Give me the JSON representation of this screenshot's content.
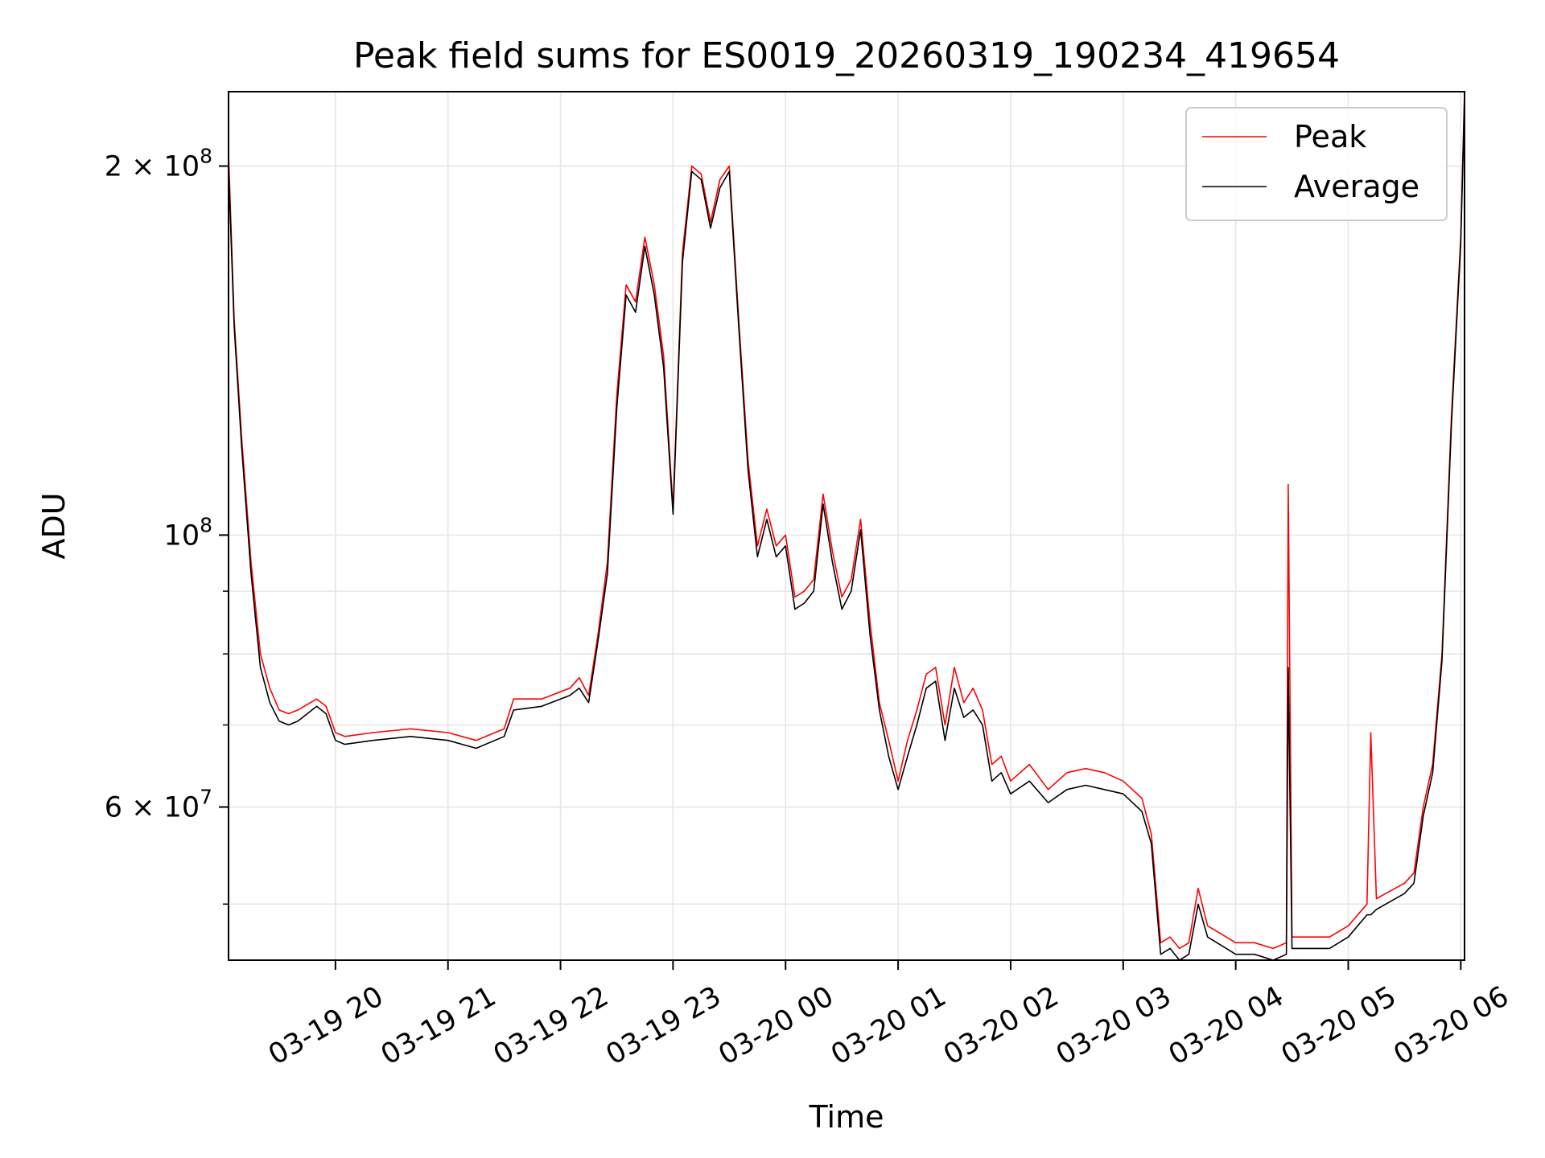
{
  "chart_data": {
    "type": "line",
    "title": "Peak field sums for ES0019_20260319_190234_419654",
    "xlabel": "Time",
    "ylabel": "ADU",
    "y_scale": "log",
    "grid": true,
    "legend_position": "top-right",
    "x_start": "2026-03-19 19:03",
    "x_end": "2026-03-20 06:02",
    "xlim": [
      "2026-03-19 19:03",
      "2026-03-20 06:02"
    ],
    "ylim": [
      45000000,
      230000000
    ],
    "x_ticks": [
      {
        "value": "2026-03-19 20:00",
        "label": "03-19 20"
      },
      {
        "value": "2026-03-19 21:00",
        "label": "03-19 21"
      },
      {
        "value": "2026-03-19 22:00",
        "label": "03-19 22"
      },
      {
        "value": "2026-03-19 23:00",
        "label": "03-19 23"
      },
      {
        "value": "2026-03-20 00:00",
        "label": "03-20 00"
      },
      {
        "value": "2026-03-20 01:00",
        "label": "03-20 01"
      },
      {
        "value": "2026-03-20 02:00",
        "label": "03-20 02"
      },
      {
        "value": "2026-03-20 03:00",
        "label": "03-20 03"
      },
      {
        "value": "2026-03-20 04:00",
        "label": "03-20 04"
      },
      {
        "value": "2026-03-20 05:00",
        "label": "03-20 05"
      },
      {
        "value": "2026-03-20 06:00",
        "label": "03-20 06"
      }
    ],
    "y_ticks": [
      {
        "value": 60000000,
        "mantissa": "6",
        "exponent": "7"
      },
      {
        "value": 100000000,
        "mantissa": "",
        "exponent": "8"
      },
      {
        "value": 200000000,
        "mantissa": "2",
        "exponent": "8"
      }
    ],
    "y_minor_ticks": [
      50000000,
      70000000,
      80000000,
      90000000
    ],
    "series": [
      {
        "name": "Peak",
        "color": "#ff0000",
        "x": [
          "2026-03-19 19:03",
          "2026-03-19 19:06",
          "2026-03-19 19:10",
          "2026-03-19 19:15",
          "2026-03-19 19:20",
          "2026-03-19 19:25",
          "2026-03-19 19:30",
          "2026-03-19 19:35",
          "2026-03-19 19:40",
          "2026-03-19 19:50",
          "2026-03-19 19:55",
          "2026-03-19 20:00",
          "2026-03-19 20:05",
          "2026-03-19 20:20",
          "2026-03-19 20:40",
          "2026-03-19 21:00",
          "2026-03-19 21:15",
          "2026-03-19 21:30",
          "2026-03-19 21:35",
          "2026-03-19 21:50",
          "2026-03-19 22:05",
          "2026-03-19 22:10",
          "2026-03-19 22:15",
          "2026-03-19 22:20",
          "2026-03-19 22:25",
          "2026-03-19 22:30",
          "2026-03-19 22:35",
          "2026-03-19 22:40",
          "2026-03-19 22:45",
          "2026-03-19 22:50",
          "2026-03-19 22:55",
          "2026-03-19 23:00",
          "2026-03-19 23:05",
          "2026-03-19 23:10",
          "2026-03-19 23:15",
          "2026-03-19 23:20",
          "2026-03-19 23:25",
          "2026-03-19 23:30",
          "2026-03-19 23:35",
          "2026-03-19 23:40",
          "2026-03-19 23:45",
          "2026-03-19 23:50",
          "2026-03-19 23:55",
          "2026-03-20 00:00",
          "2026-03-20 00:05",
          "2026-03-20 00:10",
          "2026-03-20 00:15",
          "2026-03-20 00:20",
          "2026-03-20 00:25",
          "2026-03-20 00:30",
          "2026-03-20 00:35",
          "2026-03-20 00:40",
          "2026-03-20 00:45",
          "2026-03-20 00:50",
          "2026-03-20 00:55",
          "2026-03-20 01:00",
          "2026-03-20 01:05",
          "2026-03-20 01:10",
          "2026-03-20 01:15",
          "2026-03-20 01:20",
          "2026-03-20 01:25",
          "2026-03-20 01:30",
          "2026-03-20 01:35",
          "2026-03-20 01:40",
          "2026-03-20 01:45",
          "2026-03-20 01:50",
          "2026-03-20 01:55",
          "2026-03-20 02:00",
          "2026-03-20 02:10",
          "2026-03-20 02:20",
          "2026-03-20 02:30",
          "2026-03-20 02:40",
          "2026-03-20 02:50",
          "2026-03-20 03:00",
          "2026-03-20 03:10",
          "2026-03-20 03:15",
          "2026-03-20 03:20",
          "2026-03-20 03:25",
          "2026-03-20 03:30",
          "2026-03-20 03:35",
          "2026-03-20 03:40",
          "2026-03-20 03:45",
          "2026-03-20 03:50",
          "2026-03-20 03:55",
          "2026-03-20 04:00",
          "2026-03-20 04:10",
          "2026-03-20 04:20",
          "2026-03-20 04:27",
          "2026-03-20 04:28",
          "2026-03-20 04:30",
          "2026-03-20 04:40",
          "2026-03-20 04:50",
          "2026-03-20 05:00",
          "2026-03-20 05:10",
          "2026-03-20 05:12",
          "2026-03-20 05:15",
          "2026-03-20 05:20",
          "2026-03-20 05:30",
          "2026-03-20 05:35",
          "2026-03-20 05:40",
          "2026-03-20 05:45",
          "2026-03-20 05:50",
          "2026-03-20 05:55",
          "2026-03-20 06:00",
          "2026-03-20 06:02"
        ],
        "values": [
          205000000,
          150000000,
          120000000,
          95000000,
          80000000,
          75000000,
          72000000,
          71500000,
          72000000,
          73500000,
          72500000,
          69000000,
          68500000,
          69000000,
          69500000,
          69000000,
          68000000,
          69500000,
          73500000,
          73500000,
          75000000,
          76500000,
          74000000,
          83000000,
          95000000,
          130000000,
          160000000,
          155000000,
          175000000,
          160000000,
          140000000,
          105000000,
          170000000,
          200000000,
          197000000,
          180000000,
          195000000,
          200000000,
          150000000,
          115000000,
          98000000,
          105000000,
          98000000,
          100000000,
          89000000,
          90000000,
          92000000,
          108000000,
          97000000,
          89000000,
          92000000,
          103000000,
          85000000,
          73000000,
          68000000,
          63000000,
          68000000,
          72000000,
          77000000,
          78000000,
          70000000,
          78000000,
          73000000,
          75000000,
          72000000,
          65000000,
          66000000,
          63000000,
          65000000,
          62000000,
          64000000,
          64500000,
          64000000,
          63000000,
          61000000,
          57000000,
          46500000,
          47000000,
          46000000,
          46500000,
          51500000,
          48000000,
          47500000,
          47000000,
          46500000,
          46500000,
          46000000,
          46500000,
          110000000,
          47000000,
          47000000,
          47000000,
          48000000,
          50000000,
          69000000,
          50500000,
          51000000,
          52000000,
          53000000,
          60000000,
          65000000,
          80000000,
          125000000,
          175000000,
          230000000
        ]
      },
      {
        "name": "Average",
        "color": "#000000",
        "x": [
          "2026-03-19 19:03",
          "2026-03-19 19:06",
          "2026-03-19 19:10",
          "2026-03-19 19:15",
          "2026-03-19 19:20",
          "2026-03-19 19:25",
          "2026-03-19 19:30",
          "2026-03-19 19:35",
          "2026-03-19 19:40",
          "2026-03-19 19:50",
          "2026-03-19 19:55",
          "2026-03-19 20:00",
          "2026-03-19 20:05",
          "2026-03-19 20:20",
          "2026-03-19 20:40",
          "2026-03-19 21:00",
          "2026-03-19 21:15",
          "2026-03-19 21:30",
          "2026-03-19 21:35",
          "2026-03-19 21:50",
          "2026-03-19 22:05",
          "2026-03-19 22:10",
          "2026-03-19 22:15",
          "2026-03-19 22:20",
          "2026-03-19 22:25",
          "2026-03-19 22:30",
          "2026-03-19 22:35",
          "2026-03-19 22:40",
          "2026-03-19 22:45",
          "2026-03-19 22:50",
          "2026-03-19 22:55",
          "2026-03-19 23:00",
          "2026-03-19 23:05",
          "2026-03-19 23:10",
          "2026-03-19 23:15",
          "2026-03-19 23:20",
          "2026-03-19 23:25",
          "2026-03-19 23:30",
          "2026-03-19 23:35",
          "2026-03-19 23:40",
          "2026-03-19 23:45",
          "2026-03-19 23:50",
          "2026-03-19 23:55",
          "2026-03-20 00:00",
          "2026-03-20 00:05",
          "2026-03-20 00:10",
          "2026-03-20 00:15",
          "2026-03-20 00:20",
          "2026-03-20 00:25",
          "2026-03-20 00:30",
          "2026-03-20 00:35",
          "2026-03-20 00:40",
          "2026-03-20 00:45",
          "2026-03-20 00:50",
          "2026-03-20 00:55",
          "2026-03-20 01:00",
          "2026-03-20 01:05",
          "2026-03-20 01:10",
          "2026-03-20 01:15",
          "2026-03-20 01:20",
          "2026-03-20 01:25",
          "2026-03-20 01:30",
          "2026-03-20 01:35",
          "2026-03-20 01:40",
          "2026-03-20 01:45",
          "2026-03-20 01:50",
          "2026-03-20 01:55",
          "2026-03-20 02:00",
          "2026-03-20 02:10",
          "2026-03-20 02:20",
          "2026-03-20 02:30",
          "2026-03-20 02:40",
          "2026-03-20 02:50",
          "2026-03-20 03:00",
          "2026-03-20 03:10",
          "2026-03-20 03:15",
          "2026-03-20 03:20",
          "2026-03-20 03:25",
          "2026-03-20 03:30",
          "2026-03-20 03:35",
          "2026-03-20 03:40",
          "2026-03-20 03:45",
          "2026-03-20 03:50",
          "2026-03-20 03:55",
          "2026-03-20 04:00",
          "2026-03-20 04:10",
          "2026-03-20 04:20",
          "2026-03-20 04:27",
          "2026-03-20 04:28",
          "2026-03-20 04:30",
          "2026-03-20 04:40",
          "2026-03-20 04:50",
          "2026-03-20 05:00",
          "2026-03-20 05:10",
          "2026-03-20 05:12",
          "2026-03-20 05:15",
          "2026-03-20 05:20",
          "2026-03-20 05:30",
          "2026-03-20 05:35",
          "2026-03-20 05:40",
          "2026-03-20 05:45",
          "2026-03-20 05:50",
          "2026-03-20 05:55",
          "2026-03-20 06:00",
          "2026-03-20 06:02"
        ],
        "values": [
          200000000,
          148000000,
          118000000,
          93000000,
          78000000,
          73000000,
          70500000,
          70000000,
          70500000,
          72500000,
          71500000,
          68000000,
          67500000,
          68000000,
          68500000,
          68000000,
          67000000,
          68500000,
          72000000,
          72500000,
          74000000,
          75000000,
          73000000,
          82000000,
          93000000,
          127000000,
          157000000,
          152000000,
          172000000,
          157000000,
          137000000,
          104000000,
          167000000,
          198000000,
          195000000,
          178000000,
          192000000,
          198000000,
          148000000,
          113000000,
          96000000,
          103000000,
          96000000,
          98000000,
          87000000,
          88000000,
          90000000,
          106000000,
          95000000,
          87000000,
          90000000,
          101000000,
          83000000,
          72000000,
          66000000,
          62000000,
          66000000,
          70000000,
          75000000,
          76000000,
          68000000,
          75000000,
          71000000,
          72000000,
          70000000,
          63000000,
          64000000,
          61500000,
          63000000,
          60500000,
          62000000,
          62500000,
          62000000,
          61500000,
          59500000,
          56000000,
          45500000,
          46000000,
          45000000,
          45500000,
          50000000,
          47000000,
          46500000,
          46000000,
          45500000,
          45500000,
          45000000,
          45500000,
          78000000,
          46000000,
          46000000,
          46000000,
          47000000,
          49000000,
          49000000,
          49500000,
          50000000,
          51000000,
          52000000,
          59000000,
          64000000,
          79000000,
          123000000,
          173000000,
          228000000
        ]
      }
    ]
  }
}
